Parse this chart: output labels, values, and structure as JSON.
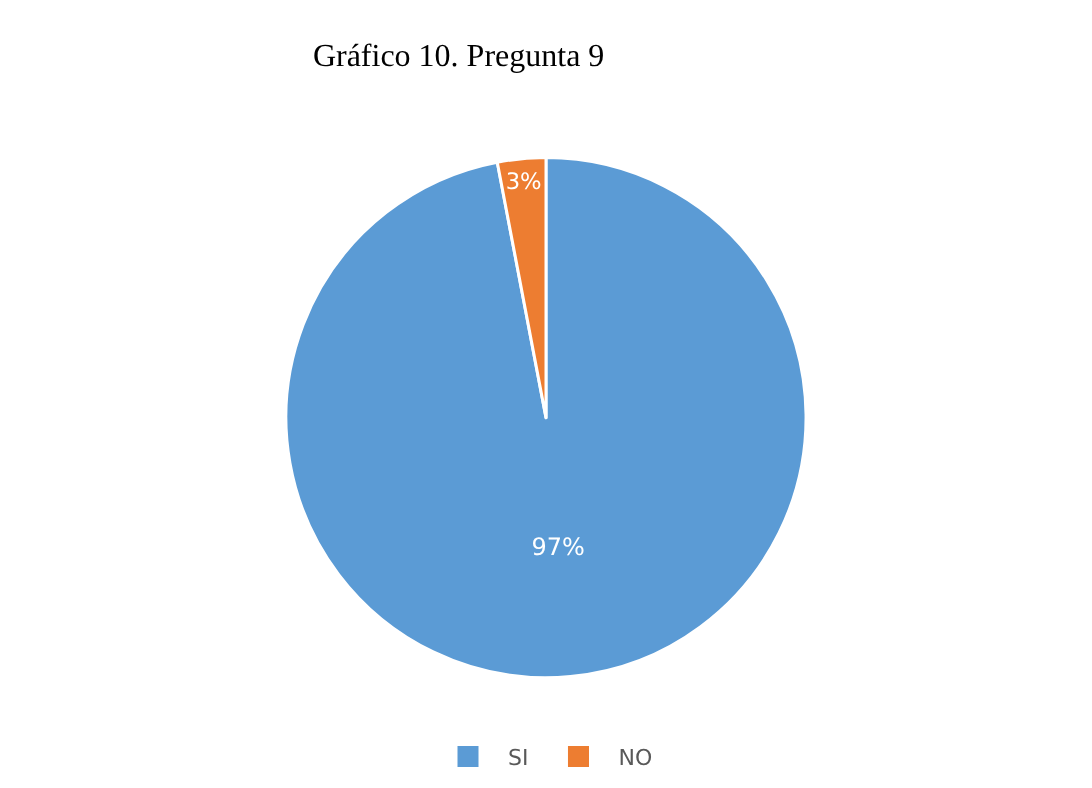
{
  "chart_data": {
    "type": "pie",
    "title": "Gráfico 10. Pregunta 9",
    "categories": [
      "SI",
      "NO"
    ],
    "values": [
      97,
      3
    ],
    "colors": [
      "#5b9bd5",
      "#ed7d31"
    ],
    "value_labels": [
      "97%",
      "3%"
    ],
    "legend": "bottom"
  }
}
